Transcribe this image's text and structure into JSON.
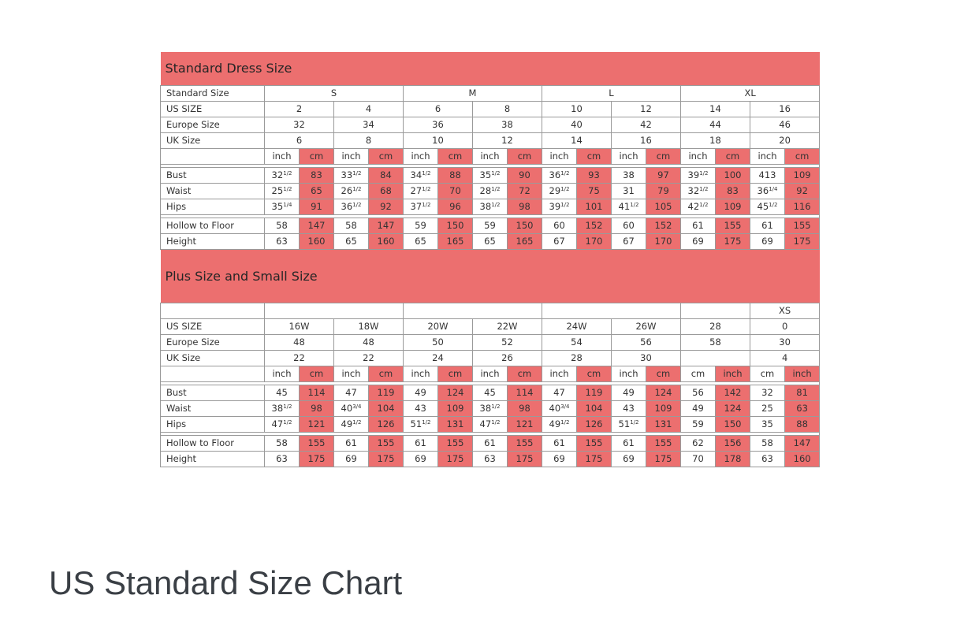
{
  "colors": {
    "accent": "#ec6f6f"
  },
  "caption": "US Standard Size Chart",
  "sections": [
    {
      "title": "Standard Dress Size",
      "header_rows": [
        {
          "label": "Standard Size",
          "spans": [
            {
              "span": 4,
              "text": "S"
            },
            {
              "span": 4,
              "text": "M"
            },
            {
              "span": 4,
              "text": "L"
            },
            {
              "span": 4,
              "text": "XL"
            }
          ]
        },
        {
          "label": "US SIZE",
          "spans": [
            {
              "span": 2,
              "text": "2"
            },
            {
              "span": 2,
              "text": "4"
            },
            {
              "span": 2,
              "text": "6"
            },
            {
              "span": 2,
              "text": "8"
            },
            {
              "span": 2,
              "text": "10"
            },
            {
              "span": 2,
              "text": "12"
            },
            {
              "span": 2,
              "text": "14"
            },
            {
              "span": 2,
              "text": "16"
            }
          ]
        },
        {
          "label": "Europe Size",
          "spans": [
            {
              "span": 2,
              "text": "32"
            },
            {
              "span": 2,
              "text": "34"
            },
            {
              "span": 2,
              "text": "36"
            },
            {
              "span": 2,
              "text": "38"
            },
            {
              "span": 2,
              "text": "40"
            },
            {
              "span": 2,
              "text": "42"
            },
            {
              "span": 2,
              "text": "44"
            },
            {
              "span": 2,
              "text": "46"
            }
          ]
        },
        {
          "label": "UK Size",
          "spans": [
            {
              "span": 2,
              "text": "6"
            },
            {
              "span": 2,
              "text": "8"
            },
            {
              "span": 2,
              "text": "10"
            },
            {
              "span": 2,
              "text": "12"
            },
            {
              "span": 2,
              "text": "14"
            },
            {
              "span": 2,
              "text": "16"
            },
            {
              "span": 2,
              "text": "18"
            },
            {
              "span": 2,
              "text": "20"
            }
          ]
        }
      ],
      "units": [
        "inch",
        "cm",
        "inch",
        "cm",
        "inch",
        "cm",
        "inch",
        "cm",
        "inch",
        "cm",
        "inch",
        "cm",
        "inch",
        "cm",
        "inch",
        "cm"
      ],
      "unit_red": [
        false,
        true,
        false,
        true,
        false,
        true,
        false,
        true,
        false,
        true,
        false,
        true,
        false,
        true,
        false,
        true
      ],
      "group1": [
        {
          "label": "Bust",
          "cells": [
            "32|1/2",
            "83",
            "33|1/2",
            "84",
            "34|1/2",
            "88",
            "35|1/2",
            "90",
            "36|1/2",
            "93",
            "38",
            "97",
            "39|1/2",
            "100",
            "413",
            "109"
          ]
        },
        {
          "label": "Waist",
          "cells": [
            "25|1/2",
            "65",
            "26|1/2",
            "68",
            "27|1/2",
            "70",
            "28|1/2",
            "72",
            "29|1/2",
            "75",
            "31",
            "79",
            "32|1/2",
            "83",
            "36|1/4",
            "92"
          ]
        },
        {
          "label": "Hips",
          "cells": [
            "35|1/4",
            "91",
            "36|1/2",
            "92",
            "37|1/2",
            "96",
            "38|1/2",
            "98",
            "39|1/2",
            "101",
            "41|1/2",
            "105",
            "42|1/2",
            "109",
            "45|1/2",
            "116"
          ]
        }
      ],
      "group2": [
        {
          "label": "Hollow to Floor",
          "cells": [
            "58",
            "147",
            "58",
            "147",
            "59",
            "150",
            "59",
            "150",
            "60",
            "152",
            "60",
            "152",
            "61",
            "155",
            "61",
            "155"
          ]
        },
        {
          "label": "Height",
          "cells": [
            "63",
            "160",
            "65",
            "160",
            "65",
            "165",
            "65",
            "165",
            "67",
            "170",
            "67",
            "170",
            "69",
            "175",
            "69",
            "175"
          ]
        }
      ]
    },
    {
      "title": "Plus Size and Small Size",
      "header_rows": [
        {
          "label": "",
          "spans": [
            {
              "span": 4,
              "text": ""
            },
            {
              "span": 4,
              "text": ""
            },
            {
              "span": 4,
              "text": ""
            },
            {
              "span": 2,
              "text": ""
            },
            {
              "span": 2,
              "text": "XS"
            }
          ]
        },
        {
          "label": "US SIZE",
          "spans": [
            {
              "span": 2,
              "text": "16W"
            },
            {
              "span": 2,
              "text": "18W"
            },
            {
              "span": 2,
              "text": "20W"
            },
            {
              "span": 2,
              "text": "22W"
            },
            {
              "span": 2,
              "text": "24W"
            },
            {
              "span": 2,
              "text": "26W"
            },
            {
              "span": 2,
              "text": "28"
            },
            {
              "span": 2,
              "text": "0"
            }
          ]
        },
        {
          "label": "Europe Size",
          "spans": [
            {
              "span": 2,
              "text": "48"
            },
            {
              "span": 2,
              "text": "48"
            },
            {
              "span": 2,
              "text": "50"
            },
            {
              "span": 2,
              "text": "52"
            },
            {
              "span": 2,
              "text": "54"
            },
            {
              "span": 2,
              "text": "56"
            },
            {
              "span": 2,
              "text": "58"
            },
            {
              "span": 2,
              "text": "30"
            }
          ]
        },
        {
          "label": "UK Size",
          "spans": [
            {
              "span": 2,
              "text": "22"
            },
            {
              "span": 2,
              "text": "22"
            },
            {
              "span": 2,
              "text": "24"
            },
            {
              "span": 2,
              "text": "26"
            },
            {
              "span": 2,
              "text": "28"
            },
            {
              "span": 2,
              "text": "30"
            },
            {
              "span": 2,
              "text": ""
            },
            {
              "span": 2,
              "text": "4"
            }
          ]
        }
      ],
      "units": [
        "inch",
        "cm",
        "inch",
        "cm",
        "inch",
        "cm",
        "inch",
        "cm",
        "inch",
        "cm",
        "inch",
        "cm",
        "cm",
        "inch",
        "cm",
        "inch"
      ],
      "unit_red": [
        false,
        true,
        false,
        true,
        false,
        true,
        false,
        true,
        false,
        true,
        false,
        true,
        false,
        true,
        false,
        true
      ],
      "group1": [
        {
          "label": "Bust",
          "cells": [
            "45",
            "114",
            "47",
            "119",
            "49",
            "124",
            "45",
            "114",
            "47",
            "119",
            "49",
            "124",
            "56",
            "142",
            "32",
            "81"
          ]
        },
        {
          "label": "Waist",
          "cells": [
            "38|1/2",
            "98",
            "40|3/4",
            "104",
            "43",
            "109",
            "38|1/2",
            "98",
            "40|3/4",
            "104",
            "43",
            "109",
            "49",
            "124",
            "25",
            "63"
          ]
        },
        {
          "label": "Hips",
          "cells": [
            "47|1/2",
            "121",
            "49|1/2",
            "126",
            "51|1/2",
            "131",
            "47|1/2",
            "121",
            "49|1/2",
            "126",
            "51|1/2",
            "131",
            "59",
            "150",
            "35",
            "88"
          ]
        }
      ],
      "group2": [
        {
          "label": "Hollow to Floor",
          "cells": [
            "58",
            "155",
            "61",
            "155",
            "61",
            "155",
            "61",
            "155",
            "61",
            "155",
            "61",
            "155",
            "62",
            "156",
            "58",
            "147"
          ]
        },
        {
          "label": "Height",
          "cells": [
            "63",
            "175",
            "69",
            "175",
            "69",
            "175",
            "63",
            "175",
            "69",
            "175",
            "69",
            "175",
            "70",
            "178",
            "63",
            "160"
          ]
        }
      ]
    }
  ]
}
